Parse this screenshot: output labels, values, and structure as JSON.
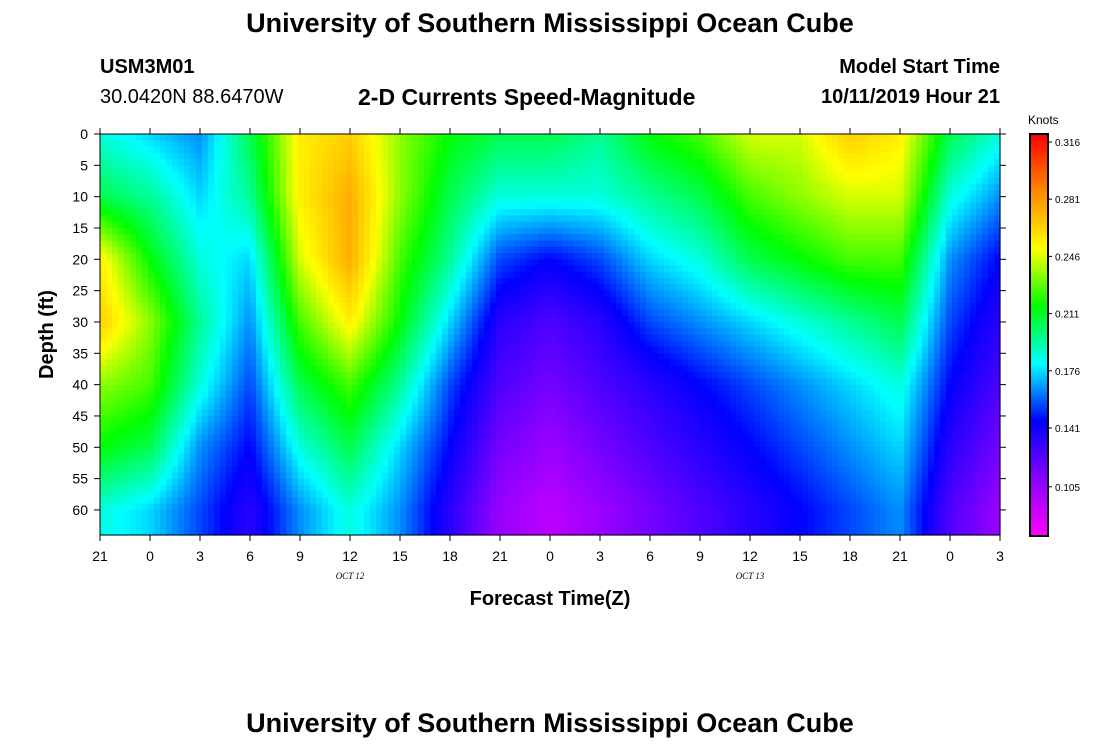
{
  "header": {
    "main_title": "University of Southern Mississippi Ocean Cube",
    "station_id": "USM3M01",
    "coordinates": "30.0420N 88.6470W",
    "plot_title": "2-D Currents Speed-Magnitude",
    "model_start_label": "Model Start Time",
    "model_start_value": "10/11/2019 Hour 21"
  },
  "footer": {
    "title": "University of Southern Mississippi Ocean Cube"
  },
  "chart_data": {
    "type": "heatmap",
    "title": "2-D Currents Speed-Magnitude",
    "xlabel": "Forecast Time(Z)",
    "ylabel": "Depth (ft)",
    "x_tick_labels": [
      "21",
      "0",
      "3",
      "6",
      "9",
      "12",
      "15",
      "18",
      "21",
      "0",
      "3",
      "6",
      "9",
      "12",
      "15",
      "18",
      "21",
      "0",
      "3"
    ],
    "x_date_labels": [
      {
        "label": "OCT 12",
        "at_tick_index": 5
      },
      {
        "label": "OCT 13",
        "at_tick_index": 13
      }
    ],
    "y_tick_labels": [
      "0",
      "5",
      "10",
      "15",
      "20",
      "25",
      "30",
      "35",
      "40",
      "45",
      "50",
      "55",
      "60"
    ],
    "ylim": [
      0,
      64
    ],
    "colorbar": {
      "unit": "Knots",
      "range": [
        0.07,
        0.316
      ],
      "tick_labels": [
        "0.316",
        "0.281",
        "0.246",
        "0.211",
        "0.176",
        "0.141",
        "0.105"
      ],
      "stops": [
        "#ff00ff",
        "#8800ff",
        "#0000ff",
        "#00ffff",
        "#00ff00",
        "#ffff00",
        "#ff8800",
        "#ff0000"
      ]
    },
    "depths": [
      0,
      10,
      20,
      30,
      40,
      50,
      60
    ],
    "hours": [
      0,
      3,
      6,
      9,
      12,
      15,
      18,
      21,
      24,
      27,
      30,
      33,
      36,
      39,
      42,
      45,
      48,
      51,
      54
    ],
    "values": [
      [
        0.18,
        0.17,
        0.16,
        0.2,
        0.25,
        0.26,
        0.23,
        0.21,
        0.2,
        0.2,
        0.19,
        0.21,
        0.22,
        0.24,
        0.24,
        0.26,
        0.25,
        0.2,
        0.18
      ],
      [
        0.2,
        0.19,
        0.17,
        0.19,
        0.25,
        0.27,
        0.23,
        0.2,
        0.18,
        0.18,
        0.18,
        0.19,
        0.2,
        0.22,
        0.23,
        0.24,
        0.24,
        0.18,
        0.16
      ],
      [
        0.25,
        0.21,
        0.18,
        0.17,
        0.24,
        0.27,
        0.22,
        0.19,
        0.15,
        0.14,
        0.15,
        0.17,
        0.18,
        0.2,
        0.21,
        0.22,
        0.22,
        0.16,
        0.14
      ],
      [
        0.26,
        0.23,
        0.19,
        0.16,
        0.22,
        0.25,
        0.21,
        0.17,
        0.13,
        0.12,
        0.13,
        0.15,
        0.16,
        0.17,
        0.18,
        0.19,
        0.2,
        0.15,
        0.13
      ],
      [
        0.23,
        0.22,
        0.18,
        0.15,
        0.2,
        0.22,
        0.19,
        0.15,
        0.12,
        0.11,
        0.12,
        0.13,
        0.14,
        0.15,
        0.16,
        0.17,
        0.18,
        0.14,
        0.12
      ],
      [
        0.21,
        0.2,
        0.16,
        0.14,
        0.18,
        0.2,
        0.17,
        0.14,
        0.11,
        0.1,
        0.11,
        0.12,
        0.13,
        0.14,
        0.15,
        0.16,
        0.17,
        0.13,
        0.11
      ],
      [
        0.18,
        0.17,
        0.15,
        0.13,
        0.16,
        0.18,
        0.16,
        0.13,
        0.1,
        0.09,
        0.1,
        0.11,
        0.12,
        0.13,
        0.14,
        0.15,
        0.16,
        0.12,
        0.1
      ]
    ]
  }
}
